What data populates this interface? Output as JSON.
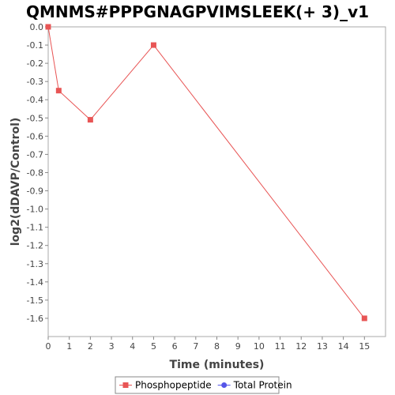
{
  "chart_data": {
    "type": "line",
    "title": "QMNMS#PPPGNAGPVIMSLEEK(+ 3)_v1",
    "xlabel": "Time (minutes)",
    "ylabel": "log2(dDAVP/Control)",
    "xlim": [
      0,
      16
    ],
    "ylim": [
      -1.7,
      0
    ],
    "xticks": [
      0,
      1,
      2,
      3,
      4,
      5,
      6,
      7,
      8,
      9,
      10,
      11,
      12,
      13,
      14,
      15
    ],
    "xtick_labels": [
      "0",
      "1",
      "2",
      "3",
      "4",
      "5",
      "6",
      "7",
      "8",
      "9",
      "10",
      "11",
      "12",
      "13",
      "14",
      "15"
    ],
    "yticks": [
      0,
      -0.1,
      -0.2,
      -0.3,
      -0.4,
      -0.5,
      -0.6,
      -0.7,
      -0.8,
      -0.9,
      -1.0,
      -1.1,
      -1.2,
      -1.3,
      -1.4,
      -1.5,
      -1.6
    ],
    "ytick_labels": [
      "0.0",
      "-0.1",
      "-0.2",
      "-0.3",
      "-0.4",
      "-0.5",
      "-0.6",
      "-0.7",
      "-0.8",
      "-0.9",
      "-1.0",
      "-1.1",
      "-1.2",
      "-1.3",
      "-1.4",
      "-1.5",
      "-1.6"
    ],
    "grid": false,
    "legend_position": "bottom",
    "series": [
      {
        "name": "Phosphopeptide",
        "color": "#e85555",
        "marker": "square",
        "x": [
          0,
          0.5,
          2,
          5,
          15
        ],
        "y": [
          0,
          -0.35,
          -0.51,
          -0.1,
          -1.6
        ]
      },
      {
        "name": "Total Protein",
        "color": "#5555e8",
        "marker": "circle",
        "x": [],
        "y": []
      }
    ]
  }
}
